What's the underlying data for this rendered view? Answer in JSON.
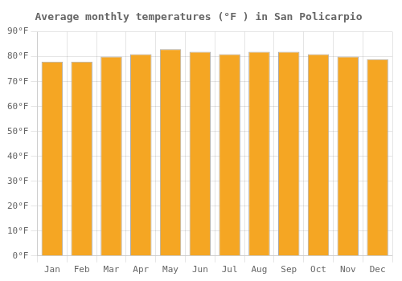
{
  "chart_data": {
    "type": "bar",
    "title": "Average monthly temperatures (°F ) in San Policarpio",
    "categories": [
      "Jan",
      "Feb",
      "Mar",
      "Apr",
      "May",
      "Jun",
      "Jul",
      "Aug",
      "Sep",
      "Oct",
      "Nov",
      "Dec"
    ],
    "values": [
      78,
      78,
      80,
      81,
      83,
      82,
      81,
      82,
      82,
      81,
      80,
      79
    ],
    "color": "#F5A623",
    "ylim": [
      0,
      90
    ],
    "yticks": [
      {
        "value": 0,
        "label": "0°F"
      },
      {
        "value": 10,
        "label": "10°F"
      },
      {
        "value": 20,
        "label": "20°F"
      },
      {
        "value": 30,
        "label": "30°F"
      },
      {
        "value": 40,
        "label": "40°F"
      },
      {
        "value": 50,
        "label": "50°F"
      },
      {
        "value": 60,
        "label": "60°F"
      },
      {
        "value": 70,
        "label": "70°F"
      },
      {
        "value": 80,
        "label": "80°F"
      },
      {
        "value": 90,
        "label": "90°F"
      }
    ],
    "grid": true
  }
}
